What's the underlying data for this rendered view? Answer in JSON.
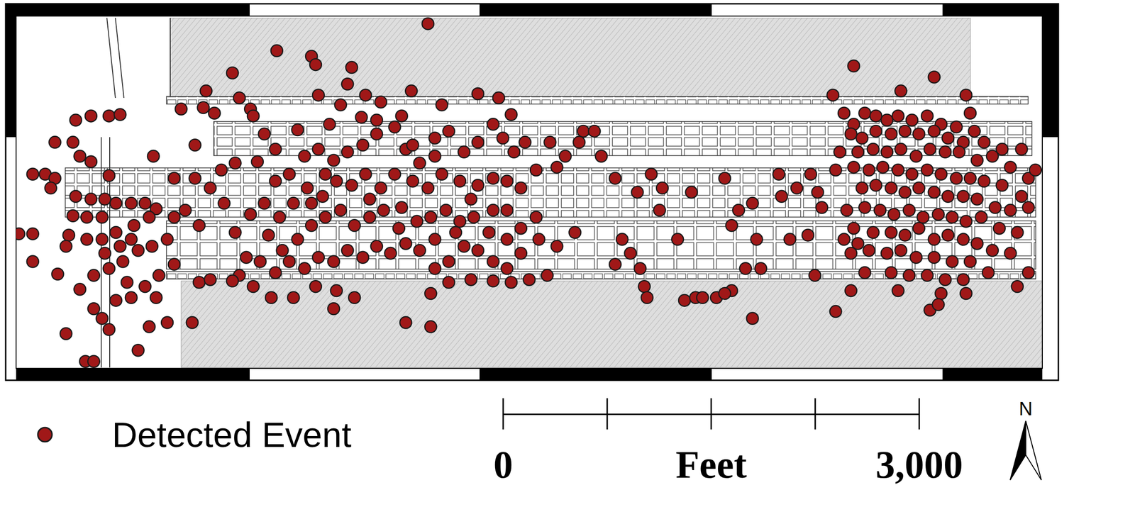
{
  "chart_data": {
    "type": "scatter",
    "xlim": [
      0,
      7400
    ],
    "ylim": [
      0,
      2540
    ],
    "tick_labels": false,
    "legend": "bottom left",
    "series": [
      {
        "name": "Detected Event",
        "color": "#a01818",
        "marker": "circle",
        "x": [
          280,
          120,
          210,
          280,
          250,
          410,
          430,
          540,
          670,
          750,
          460,
          540,
          670,
          640,
          540,
          430,
          410,
          510,
          620,
          720,
          830,
          930,
          1010,
          1140,
          990,
          960,
          850,
          720,
          620,
          510,
          380,
          360,
          120,
          20,
          120,
          300,
          460,
          560,
          670,
          770,
          880,
          980,
          1090,
          1140,
          1030,
          930,
          830,
          720,
          620,
          670,
          560,
          960,
          880,
          500,
          560,
          360,
          750,
          830,
          640,
          800,
          1010,
          1090,
          1140,
          1290,
          1220,
          1320,
          1190,
          1350,
          1370,
          1430,
          1560,
          1690,
          1710,
          1790,
          1610,
          1880,
          2130,
          2160,
          2420,
          2390,
          2180,
          2340,
          2520,
          2630,
          2850,
          3070,
          3330,
          3480,
          3570,
          2970,
          2780,
          2600,
          2490,
          2260,
          2030,
          1870,
          1740,
          1580,
          1480,
          1290,
          1400,
          1500,
          1580,
          1690,
          1790,
          1870,
          1970,
          2080,
          2180,
          2290,
          2390,
          2500,
          2600,
          2730,
          2810,
          2910,
          3020,
          3120,
          3230,
          3330,
          3440,
          3510,
          3590,
          3670,
          3750,
          3850,
          3960,
          4090,
          4220,
          3900,
          3640,
          3540,
          3440,
          3330,
          3200,
          3070,
          2970,
          2860,
          2730,
          2630,
          2520,
          2420,
          2310,
          2210,
          2100,
          2000,
          1900,
          1820,
          1920,
          2030,
          2130,
          2230,
          2340,
          2440,
          2550,
          2650,
          2780,
          2890,
          2990,
          3100,
          3200,
          3300,
          3410,
          3540,
          3640,
          3770,
          3900,
          4030,
          3640,
          3540,
          3440,
          3330,
          3230,
          3120,
          3020,
          2910,
          2810,
          2700,
          2600,
          2500,
          2390,
          2290,
          2180,
          2080,
          1970,
          1870,
          1760,
          1660,
          1610,
          1710,
          1840,
          2000,
          2160,
          2310,
          2440,
          2290,
          2810,
          2990,
          2990,
          3120,
          3280,
          3440,
          3570,
          3700,
          3830,
          1320,
          1270,
          1560,
          1400,
          2860,
          3020,
          2230,
          2130,
          2550,
          2760,
          3020,
          3170,
          3280,
          3540,
          3750,
          3440,
          4060,
          4170,
          4320,
          4480,
          4580,
          4660,
          4640,
          4870,
          5110,
          5310,
          5500,
          5630,
          5780,
          5810,
          5210,
          4370,
          4430,
          4500,
          4530,
          4550,
          4320,
          4770,
          4820,
          4900,
          5050,
          5160,
          5260,
          5340,
          5580,
          5760,
          5310,
          5710,
          5520,
          5730,
          5910,
          4950,
          5110,
          5370,
          5160,
          5890,
          6040,
          6380,
          6620,
          6850,
          6880,
          5970,
          6040,
          6120,
          6200,
          6280,
          6360,
          6460,
          6570,
          6670,
          6780,
          6910,
          6020,
          6100,
          6200,
          6310,
          6410,
          6510,
          6620,
          6720,
          6830,
          6980,
          7110,
          7250,
          5940,
          6070,
          6180,
          6280,
          6380,
          6490,
          6590,
          6700,
          6800,
          6930,
          7040,
          7170,
          7300,
          7350,
          6040,
          6150,
          6250,
          6360,
          6460,
          6570,
          6670,
          6780,
          6880,
          6980,
          7110,
          7250,
          6100,
          6200,
          6310,
          6410,
          6510,
          6620,
          6720,
          6830,
          6930,
          7060,
          7170,
          7300,
          5990,
          6120,
          6230,
          6330,
          6440,
          6540,
          6650,
          6750,
          6850,
          6960,
          7090,
          7220,
          6040,
          6180,
          6310,
          6410,
          6510,
          6620,
          6720,
          6830,
          6930,
          7040,
          7170,
          6020,
          6150,
          6280,
          6380,
          6490,
          6620,
          6750,
          6880,
          7010,
          7300,
          6120,
          6310,
          6440,
          6570,
          6700,
          6830,
          6020,
          6360,
          6670,
          6850,
          5910,
          6590,
          6650,
          7220,
          5970,
          6070
        ],
        "values": [
          1630,
          1400,
          1400,
          1370,
          1300,
          1630,
          1790,
          1820,
          1820,
          1830,
          1530,
          1490,
          1390,
          1220,
          1220,
          1240,
          1100,
          1090,
          1090,
          1190,
          1190,
          1190,
          1150,
          1370,
          1530,
          1090,
          1030,
          980,
          930,
          930,
          960,
          880,
          770,
          970,
          970,
          680,
          570,
          670,
          720,
          770,
          850,
          880,
          930,
          750,
          670,
          590,
          510,
          490,
          360,
          280,
          430,
          300,
          130,
          50,
          50,
          250,
          880,
          930,
          830,
          620,
          510,
          330,
          1090,
          1370,
          1140,
          1030,
          1870,
          1880,
          2000,
          1840,
          2130,
          1870,
          1820,
          1690,
          1950,
          2290,
          2250,
          2190,
          2170,
          2050,
          1970,
          1900,
          1970,
          1920,
          2000,
          1900,
          1980,
          1950,
          1830,
          2485,
          1820,
          1790,
          1810,
          1760,
          1720,
          1580,
          1490,
          1480,
          1430,
          1610,
          1300,
          1190,
          980,
          1110,
          1190,
          1350,
          1400,
          1530,
          1580,
          1500,
          1560,
          1610,
          1690,
          1740,
          1580,
          1480,
          1660,
          1710,
          1560,
          1630,
          1760,
          1660,
          1560,
          1630,
          1430,
          1630,
          1530,
          1710,
          1530,
          1450,
          1300,
          1350,
          1370,
          1320,
          1350,
          1400,
          1300,
          1350,
          1400,
          1300,
          1400,
          1320,
          1350,
          1240,
          1300,
          1190,
          1090,
          960,
          850,
          930,
          1030,
          1090,
          1140,
          1030,
          1090,
          1140,
          1160,
          1060,
          1090,
          1140,
          1060,
          1090,
          980,
          930,
          1010,
          930,
          880,
          980,
          830,
          720,
          770,
          850,
          880,
          770,
          720,
          850,
          900,
          830,
          880,
          800,
          850,
          770,
          800,
          720,
          770,
          690,
          770,
          800,
          670,
          590,
          510,
          510,
          590,
          560,
          510,
          430,
          330,
          300,
          540,
          620,
          640,
          630,
          620,
          640,
          670,
          620,
          330,
          630,
          640,
          1610,
          1530,
          1400,
          1190,
          1220,
          1010,
          930,
          980,
          1220,
          1140,
          1090,
          1140,
          1630,
          1710,
          1370,
          1270,
          1400,
          1300,
          1140,
          1270,
          1370,
          1190,
          1400,
          1300,
          1270,
          1160,
          1140,
          930,
          830,
          720,
          590,
          510,
          750,
          930,
          490,
          510,
          510,
          560,
          720,
          930,
          930,
          670,
          360,
          960,
          1240,
          1400,
          1430,
          510,
          540,
          720,
          1030,
          1970,
          2180,
          2000,
          2100,
          1970,
          1840,
          1840,
          1760,
          1840,
          1820,
          1790,
          1820,
          1790,
          1820,
          1760,
          1740,
          1710,
          1690,
          1660,
          1710,
          1690,
          1710,
          1690,
          1710,
          1660,
          1630,
          1630,
          1580,
          1580,
          1560,
          1560,
          1580,
          1560,
          1580,
          1530,
          1580,
          1560,
          1560,
          1500,
          1530,
          1450,
          1370,
          1430,
          1450,
          1430,
          1450,
          1430,
          1400,
          1430,
          1400,
          1370,
          1370,
          1350,
          1320,
          1240,
          1300,
          1320,
          1300,
          1270,
          1300,
          1270,
          1240,
          1240,
          1220,
          1160,
          1140,
          1160,
          1140,
          1160,
          1140,
          1110,
          1140,
          1090,
          1110,
          1090,
          1060,
          1090,
          1010,
          980,
          1010,
          980,
          980,
          960,
          1010,
          930,
          960,
          930,
          900,
          850,
          830,
          830,
          850,
          830,
          850,
          800,
          800,
          770,
          770,
          690,
          690,
          690,
          690,
          670,
          670,
          640,
          640,
          560,
          560,
          540,
          540,
          410,
          420,
          460,
          590,
          930,
          900
        ]
      }
    ],
    "scale_bar": {
      "unit": "Feet",
      "ticks": [
        0,
        750,
        1500,
        2250,
        3000
      ],
      "labeled_ticks": [
        0,
        {
          "value": 3000,
          "label": "3,000"
        }
      ]
    },
    "north_arrow_label": "N"
  }
}
